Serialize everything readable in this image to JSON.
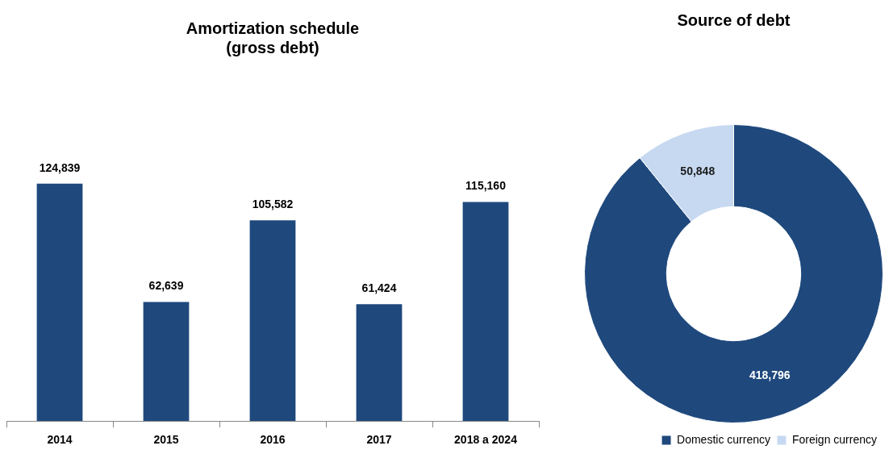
{
  "chart_data": [
    {
      "type": "bar",
      "title": "Amortization schedule\n(gross debt)",
      "categories": [
        "2014",
        "2015",
        "2016",
        "2017",
        "2018 a 2024"
      ],
      "values": [
        124839,
        62639,
        105582,
        61424,
        115160
      ],
      "value_labels": [
        "124,839",
        "62,639",
        "105,582",
        "61,424",
        "115,160"
      ],
      "color": "#1f497d",
      "grid": false,
      "legend": false
    },
    {
      "type": "donut",
      "title": "Source of debt",
      "categories": [
        "Domestic currency",
        "Foreign currency"
      ],
      "values": [
        418796,
        50848
      ],
      "value_labels": [
        "418,796",
        "50,848"
      ],
      "colors": [
        "#1f497d",
        "#c6d9f1"
      ],
      "legend": "bottom right"
    }
  ]
}
